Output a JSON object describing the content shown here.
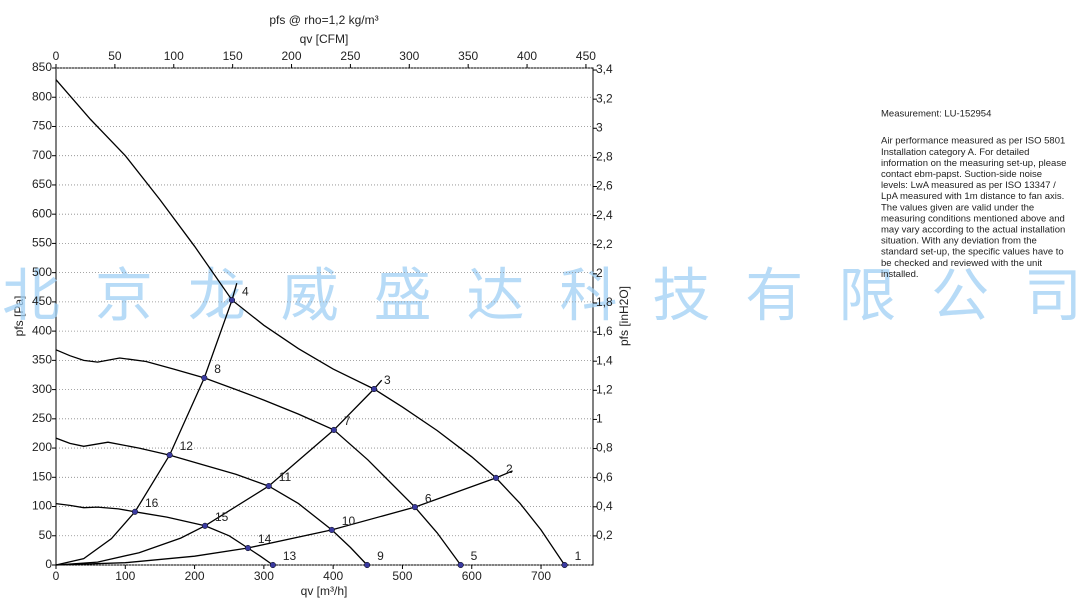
{
  "chart_data": {
    "type": "line",
    "title": "pfs @ rho=1,2 kg/m³",
    "x_label": "qv [m³/h]",
    "x2_label": "qv [CFM]",
    "y_label": "pfs [Pa]",
    "y2_label": "pfs [inH2O]",
    "xlim": [
      0,
      775
    ],
    "xticks": [
      0,
      100,
      200,
      300,
      400,
      500,
      600,
      700
    ],
    "x2lim": [
      0,
      456
    ],
    "x2ticks": [
      0,
      50,
      100,
      150,
      200,
      250,
      300,
      350,
      400,
      450
    ],
    "ylim": [
      0,
      850
    ],
    "yticks": [
      0,
      50,
      100,
      150,
      200,
      250,
      300,
      350,
      400,
      450,
      500,
      550,
      600,
      650,
      700,
      750,
      800,
      850
    ],
    "y2lim": [
      0,
      3.414
    ],
    "y2ticks": [
      {
        "value": 0.2,
        "label": "0,2"
      },
      {
        "value": 0.4,
        "label": "0,4"
      },
      {
        "value": 0.6,
        "label": "0,6"
      },
      {
        "value": 0.8,
        "label": "0,8"
      },
      1,
      {
        "value": 1.2,
        "label": "1,2"
      },
      {
        "value": 1.4,
        "label": "1,4"
      },
      {
        "value": 1.6,
        "label": "1,6"
      },
      {
        "value": 1.8,
        "label": "1,8"
      },
      2,
      {
        "value": 2.2,
        "label": "2,2"
      },
      {
        "value": 2.4,
        "label": "2,4"
      },
      {
        "value": 2.6,
        "label": "2,6"
      },
      {
        "value": 2.8,
        "label": "2,8"
      },
      3,
      {
        "value": 3.2,
        "label": "3,2"
      },
      {
        "value": 3.4,
        "label": "3,4"
      }
    ],
    "grid": true,
    "series": [
      {
        "color": "#000000",
        "x": [
          0,
          50,
          100,
          150,
          200,
          254,
          300,
          350,
          400,
          459,
          500,
          550,
          600,
          635,
          670,
          700,
          734
        ],
        "values": [
          830,
          762,
          700,
          625,
          545,
          453,
          410,
          370,
          335,
          301,
          270,
          230,
          185,
          149,
          105,
          60,
          0
        ]
      },
      {
        "color": "#000000",
        "x": [
          0,
          20,
          40,
          60,
          92,
          130,
          170,
          214,
          260,
          300,
          350,
          401,
          450,
          518,
          550,
          584
        ],
        "values": [
          368,
          358,
          350,
          347,
          354,
          348,
          335,
          320,
          300,
          282,
          258,
          231,
          180,
          99,
          55,
          0
        ]
      },
      {
        "color": "#000000",
        "x": [
          0,
          20,
          40,
          75,
          120,
          164,
          210,
          260,
          307,
          350,
          398,
          425,
          449
        ],
        "values": [
          217,
          208,
          203,
          210,
          200,
          188,
          172,
          155,
          135,
          105,
          60,
          30,
          0
        ]
      },
      {
        "color": "#000000",
        "x": [
          0,
          20,
          40,
          60,
          90,
          114,
          160,
          215,
          250,
          277,
          295,
          313
        ],
        "values": [
          105,
          102,
          98,
          99,
          96,
          91,
          82,
          67,
          50,
          29,
          15,
          0
        ]
      },
      {
        "color": "#000000",
        "x": [
          0,
          40,
          80,
          114,
          164,
          214,
          254,
          261
        ],
        "values": [
          0,
          11,
          45,
          91,
          188,
          320,
          453,
          482
        ]
      },
      {
        "color": "#000000",
        "x": [
          0,
          60,
          120,
          180,
          215,
          307,
          401,
          459,
          470
        ],
        "values": [
          0,
          5,
          21,
          46,
          67,
          135,
          231,
          301,
          316
        ]
      },
      {
        "color": "#000000",
        "x": [
          0,
          100,
          200,
          277,
          398,
          518,
          635,
          659
        ],
        "values": [
          0,
          4,
          15,
          29,
          60,
          99,
          149,
          161
        ]
      }
    ],
    "points": [
      {
        "label": "1",
        "x": 734,
        "y": 0
      },
      {
        "label": "2",
        "x": 635,
        "y": 149
      },
      {
        "label": "3",
        "x": 459,
        "y": 301
      },
      {
        "label": "4",
        "x": 254,
        "y": 453
      },
      {
        "label": "5",
        "x": 584,
        "y": 0
      },
      {
        "label": "6",
        "x": 518,
        "y": 99
      },
      {
        "label": "7",
        "x": 401,
        "y": 231
      },
      {
        "label": "8",
        "x": 214,
        "y": 320
      },
      {
        "label": "9",
        "x": 449,
        "y": 0
      },
      {
        "label": "10",
        "x": 398,
        "y": 60
      },
      {
        "label": "11",
        "x": 307,
        "y": 135
      },
      {
        "label": "12",
        "x": 164,
        "y": 188
      },
      {
        "label": "13",
        "x": 313,
        "y": 0
      },
      {
        "label": "14",
        "x": 277,
        "y": 29
      },
      {
        "label": "15",
        "x": 215,
        "y": 67
      },
      {
        "label": "16",
        "x": 114,
        "y": 91
      }
    ],
    "point_color": "#3a3aa0",
    "watermark": "北京龙威盛达科技有限公司",
    "notes": [
      "Measurement: LU-152954",
      "",
      "Air performance measured as per ISO 5801",
      "Installation category A. For detailed",
      "information on the measuring set-up, please",
      "contact ebm-papst. Suction-side noise",
      "levels: LwA measured as per ISO 13347 /",
      "LpA measured with 1m distance to fan axis.",
      "The values given are valid under the",
      "measuring conditions mentioned above and",
      "may vary according to the actual installation",
      "situation. With any deviation from the",
      "standard set-up, the specific values have to",
      "be checked and reviewed with the unit",
      "installed."
    ]
  }
}
